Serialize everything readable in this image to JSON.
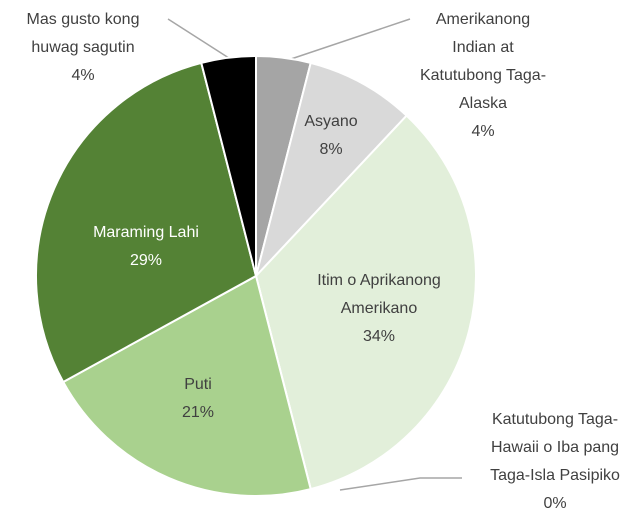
{
  "chart_data": {
    "type": "pie",
    "categories": [
      "Amerikanong Indian at Katutubong Taga-Alaska",
      "Asyano",
      "Itim o Aprikanong Amerikano",
      "Katutubong Taga-Hawaii o Iba pang Taga-Isla Pasipiko",
      "Puti",
      "Maraming Lahi",
      "Mas gusto kong huwag sagutin"
    ],
    "values": [
      4,
      8,
      34,
      0,
      21,
      29,
      4
    ],
    "value_labels": [
      "4%",
      "8%",
      "34%",
      "0%",
      "21%",
      "29%",
      "4%"
    ],
    "colors": [
      "#a5a5a5",
      "#d9d9d9",
      "#e2efda",
      "#c5e0b4",
      "#a9d18e",
      "#548235",
      "#000000"
    ]
  }
}
